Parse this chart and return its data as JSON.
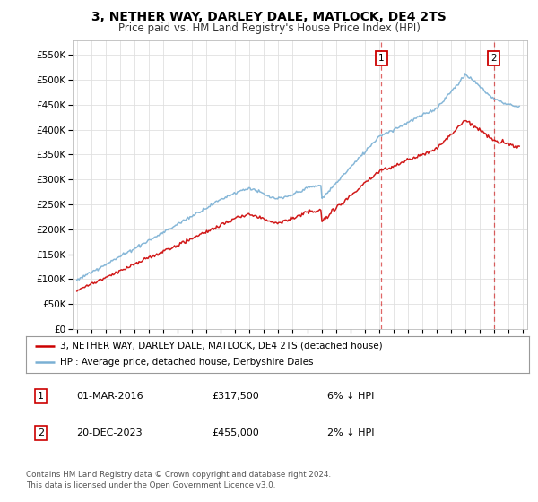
{
  "title": "3, NETHER WAY, DARLEY DALE, MATLOCK, DE4 2TS",
  "subtitle": "Price paid vs. HM Land Registry's House Price Index (HPI)",
  "ylabel_ticks": [
    "£0",
    "£50K",
    "£100K",
    "£150K",
    "£200K",
    "£250K",
    "£300K",
    "£350K",
    "£400K",
    "£450K",
    "£500K",
    "£550K"
  ],
  "ytick_values": [
    0,
    50000,
    100000,
    150000,
    200000,
    250000,
    300000,
    350000,
    400000,
    450000,
    500000,
    550000
  ],
  "ylim": [
    0,
    580000
  ],
  "xlim_start": 1994.7,
  "xlim_end": 2026.3,
  "xtick_years": [
    1995,
    1996,
    1997,
    1998,
    1999,
    2000,
    2001,
    2002,
    2003,
    2004,
    2005,
    2006,
    2007,
    2008,
    2009,
    2010,
    2011,
    2012,
    2013,
    2014,
    2015,
    2016,
    2017,
    2018,
    2019,
    2020,
    2021,
    2022,
    2023,
    2024,
    2025,
    2026
  ],
  "sale1_x": 2016.17,
  "sale1_y": 317500,
  "sale2_x": 2023.97,
  "sale2_y": 455000,
  "legend_line1": "3, NETHER WAY, DARLEY DALE, MATLOCK, DE4 2TS (detached house)",
  "legend_line2": "HPI: Average price, detached house, Derbyshire Dales",
  "annotation1_num": "1",
  "annotation1_date": "01-MAR-2016",
  "annotation1_price": "£317,500",
  "annotation1_hpi": "6% ↓ HPI",
  "annotation2_num": "2",
  "annotation2_date": "20-DEC-2023",
  "annotation2_price": "£455,000",
  "annotation2_hpi": "2% ↓ HPI",
  "footer": "Contains HM Land Registry data © Crown copyright and database right 2024.\nThis data is licensed under the Open Government Licence v3.0.",
  "line_red_color": "#cc0000",
  "line_blue_color": "#7ab0d4",
  "vline_color": "#cc0000",
  "bg_color": "#ffffff",
  "grid_color": "#e0e0e0"
}
